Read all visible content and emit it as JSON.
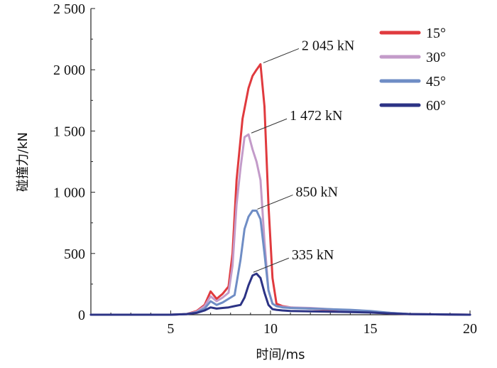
{
  "chart_data": {
    "type": "line",
    "xlabel": "时间/ms",
    "ylabel": "碰撞力/kN",
    "xlim": [
      1,
      20
    ],
    "ylim": [
      0,
      2500
    ],
    "x_ticks": [
      5,
      10,
      15,
      20
    ],
    "x_tick_labels": [
      "5",
      "10",
      "15",
      "20"
    ],
    "y_ticks": [
      0,
      500,
      1000,
      1500,
      2000,
      2500
    ],
    "y_tick_labels": [
      "0",
      "500",
      "1 000",
      "1 500",
      "2 000",
      "2 500"
    ],
    "grid": false,
    "legend_position": "top-right",
    "series": [
      {
        "name": "15°",
        "color": "#e03a3e",
        "x": [
          1,
          5,
          5.8,
          6.3,
          6.7,
          7.0,
          7.3,
          7.6,
          7.9,
          8.1,
          8.3,
          8.6,
          8.9,
          9.1,
          9.3,
          9.5,
          9.7,
          9.9,
          10.1,
          10.3,
          10.6,
          11,
          12,
          13,
          14,
          15,
          16,
          17,
          20
        ],
        "y": [
          0,
          0,
          5,
          30,
          80,
          190,
          130,
          170,
          230,
          500,
          1100,
          1600,
          1850,
          1950,
          2000,
          2045,
          1700,
          900,
          300,
          90,
          70,
          60,
          50,
          40,
          30,
          20,
          10,
          5,
          0
        ]
      },
      {
        "name": "30°",
        "color": "#c39bc9",
        "x": [
          1,
          5,
          5.8,
          6.3,
          6.7,
          7.0,
          7.3,
          7.6,
          7.9,
          8.1,
          8.3,
          8.5,
          8.7,
          8.9,
          9.1,
          9.3,
          9.5,
          9.7,
          9.9,
          10.1,
          10.3,
          10.6,
          11,
          12,
          13,
          14,
          15,
          16,
          17,
          20
        ],
        "y": [
          0,
          0,
          5,
          25,
          70,
          150,
          110,
          140,
          180,
          400,
          900,
          1200,
          1450,
          1472,
          1350,
          1250,
          1100,
          600,
          200,
          90,
          70,
          65,
          60,
          55,
          45,
          35,
          25,
          15,
          5,
          0
        ]
      },
      {
        "name": "45°",
        "color": "#6f8dc5",
        "x": [
          1,
          5,
          5.8,
          6.3,
          6.7,
          7.0,
          7.3,
          7.6,
          7.9,
          8.2,
          8.5,
          8.7,
          8.9,
          9.1,
          9.3,
          9.5,
          9.7,
          9.9,
          10.1,
          10.3,
          10.6,
          11,
          12,
          13,
          14,
          15,
          16,
          17,
          20
        ],
        "y": [
          0,
          0,
          5,
          20,
          50,
          110,
          80,
          100,
          130,
          160,
          450,
          700,
          800,
          850,
          850,
          780,
          500,
          200,
          90,
          70,
          60,
          55,
          50,
          45,
          40,
          30,
          15,
          5,
          0
        ]
      },
      {
        "name": "60°",
        "color": "#2c3385",
        "x": [
          1,
          5,
          5.8,
          6.3,
          6.7,
          7.0,
          7.3,
          7.6,
          7.9,
          8.2,
          8.5,
          8.7,
          8.9,
          9.1,
          9.3,
          9.5,
          9.7,
          9.9,
          10.1,
          10.3,
          10.6,
          11,
          12,
          13,
          14,
          15,
          16,
          17,
          20
        ],
        "y": [
          0,
          0,
          5,
          15,
          35,
          60,
          50,
          55,
          60,
          70,
          80,
          140,
          240,
          320,
          335,
          300,
          180,
          80,
          45,
          40,
          35,
          30,
          28,
          25,
          22,
          18,
          10,
          5,
          0
        ]
      }
    ],
    "annotations": [
      {
        "text": "2 045 kN",
        "x": 9.5,
        "y": 2045
      },
      {
        "text": "1 472 kN",
        "x": 8.9,
        "y": 1472
      },
      {
        "text": "850 kN",
        "x": 9.2,
        "y": 850
      },
      {
        "text": "335 kN",
        "x": 9.0,
        "y": 335
      }
    ]
  }
}
